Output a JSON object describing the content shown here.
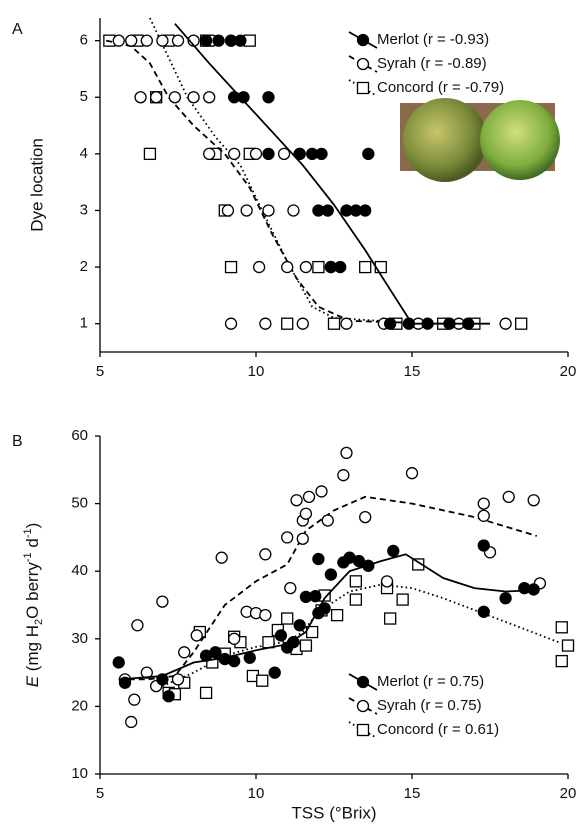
{
  "chart_data": [
    {
      "type": "scatter",
      "panel": "A",
      "y_label": "Dye location",
      "xlim": [
        5,
        20
      ],
      "xticks": [
        5,
        10,
        15,
        20
      ],
      "ylim": [
        0.5,
        6.4
      ],
      "yticks": [
        1,
        2,
        3,
        4,
        5,
        6
      ],
      "legend": "upper right",
      "series": [
        {
          "name": "Concord (r = -0.79)",
          "marker": "square",
          "color": "#000000",
          "line_style": "dotted",
          "x": [
            5.3,
            6.2,
            7.2,
            8.4,
            9.8,
            6.8,
            6.6,
            8.7,
            9.8,
            9.0,
            9.2,
            12.0,
            13.5,
            14.0,
            11.0,
            12.5,
            14.5,
            16.0,
            17.0,
            18.5
          ],
          "values": [
            6,
            6,
            6,
            6,
            6,
            5,
            4,
            4,
            4,
            3,
            2,
            2,
            2,
            2,
            1,
            1,
            1,
            1,
            1,
            1
          ],
          "fit_x": [
            6.6,
            7.2,
            7.8,
            8.7,
            9.5,
            10.2,
            11.0,
            11.8,
            12.5,
            14.0
          ],
          "fit_values": [
            6.4,
            5.7,
            5.0,
            4.3,
            3.8,
            3.0,
            2.1,
            1.3,
            1.1,
            1.05
          ]
        },
        {
          "name": "Syrah (r = -0.89)",
          "marker": "open-circle",
          "color": "#000000",
          "line_style": "dashed",
          "x": [
            5.6,
            6.0,
            6.5,
            7.0,
            7.5,
            8.0,
            8.6,
            9.2,
            6.3,
            6.8,
            7.4,
            8.0,
            8.5,
            8.5,
            9.3,
            10.0,
            10.9,
            11.4,
            9.1,
            9.7,
            10.4,
            11.2,
            10.1,
            11.0,
            11.6,
            12.4,
            9.2,
            10.3,
            11.5,
            12.9,
            14.1,
            15.2,
            16.5,
            18.0
          ],
          "values": [
            6,
            6,
            6,
            6,
            6,
            6,
            6,
            6,
            5,
            5,
            5,
            5,
            5,
            4,
            4,
            4,
            4,
            4,
            3,
            3,
            3,
            3,
            2,
            2,
            2,
            2,
            1,
            1,
            1,
            1,
            1,
            1,
            1,
            1
          ],
          "fit_x": [
            5.2,
            6.0,
            6.6,
            7.2,
            8.0,
            9.0,
            9.8,
            10.5,
            11.3,
            12.0,
            13.0,
            16.0
          ],
          "fit_values": [
            6.0,
            5.9,
            5.6,
            5.0,
            4.5,
            4.0,
            3.4,
            2.6,
            1.8,
            1.3,
            1.05,
            1.0
          ]
        },
        {
          "name": "Merlot (r = -0.93)",
          "marker": "filled-circle",
          "color": "#000000",
          "line_style": "solid",
          "x": [
            8.4,
            8.8,
            9.2,
            9.5,
            9.3,
            9.6,
            10.4,
            10.4,
            11.4,
            11.8,
            12.1,
            13.6,
            12.0,
            12.3,
            12.9,
            13.2,
            13.5,
            12.4,
            12.7,
            14.3,
            14.9,
            15.5,
            16.2,
            16.8
          ],
          "values": [
            6,
            6,
            6,
            6,
            5,
            5,
            5,
            4,
            4,
            4,
            4,
            4,
            3,
            3,
            3,
            3,
            3,
            2,
            2,
            1,
            1,
            1,
            1,
            1
          ],
          "fit_x": [
            7.4,
            8.5,
            9.5,
            10.5,
            11.5,
            12.5,
            13.5,
            14.3,
            15.0,
            17.5
          ],
          "fit_values": [
            6.3,
            5.6,
            5.0,
            4.4,
            3.8,
            3.1,
            2.3,
            1.6,
            1.0,
            1.0
          ]
        }
      ]
    },
    {
      "type": "scatter",
      "panel": "B",
      "x_label": "TSS (°Brix)",
      "y_label_parts": [
        {
          "text": "E",
          "format": "italic"
        },
        {
          "text": " (mg H",
          "format": "normal"
        },
        {
          "text": "2",
          "format": "sub"
        },
        {
          "text": "O berry",
          "format": "normal"
        },
        {
          "text": "-1",
          "format": "sup"
        },
        {
          "text": " d",
          "format": "normal"
        },
        {
          "text": "-1",
          "format": "sup"
        },
        {
          "text": ")",
          "format": "normal"
        }
      ],
      "xlim": [
        5,
        20
      ],
      "xticks": [
        5,
        10,
        15,
        20
      ],
      "ylim": [
        10,
        60
      ],
      "yticks": [
        10,
        20,
        30,
        40,
        50,
        60
      ],
      "legend": "lower right",
      "series": [
        {
          "name": "Concord (r = 0.61)",
          "marker": "square",
          "color": "#000000",
          "line_style": "dotted",
          "x": [
            7.2,
            7.4,
            7.7,
            8.2,
            8.4,
            8.6,
            9.0,
            9.3,
            9.5,
            9.9,
            10.2,
            10.4,
            10.7,
            11.0,
            11.3,
            11.6,
            11.8,
            12.1,
            12.2,
            12.6,
            13.2,
            13.2,
            14.2,
            14.3,
            14.7,
            15.2,
            19.8,
            19.8,
            20.0
          ],
          "values": [
            22,
            21.8,
            23.5,
            31,
            22,
            26.5,
            27.8,
            30.3,
            29.5,
            24.5,
            23.8,
            29.5,
            31.3,
            33,
            28.5,
            29,
            31,
            34.2,
            36.4,
            33.5,
            35.8,
            38.5,
            37.5,
            33,
            35.8,
            41,
            31.7,
            26.7,
            29
          ],
          "fit_x": [
            7.0,
            8.0,
            9.0,
            10.0,
            11.0,
            11.5,
            12.0,
            13.0,
            14.0,
            15.0,
            16.0,
            18.0,
            19.7
          ],
          "fit_values": [
            23,
            25,
            27.5,
            28.8,
            29.6,
            31,
            34,
            37,
            38,
            37.5,
            36,
            32.5,
            29.5
          ]
        },
        {
          "name": "Syrah (r = 0.75)",
          "marker": "open-circle",
          "color": "#000000",
          "line_style": "dashed",
          "x": [
            5.8,
            6.1,
            6.0,
            6.2,
            6.5,
            6.8,
            7.0,
            7.5,
            7.7,
            8.1,
            8.9,
            9.3,
            9.7,
            10.0,
            10.3,
            10.3,
            11.0,
            11.1,
            11.3,
            11.5,
            11.5,
            11.6,
            11.7,
            12.1,
            12.3,
            12.8,
            12.9,
            13.5,
            14.2,
            15.0,
            17.3,
            17.3,
            17.5,
            18.1,
            18.9,
            19.1
          ],
          "values": [
            24,
            21,
            17.7,
            32,
            25,
            23,
            35.5,
            24,
            28,
            30.5,
            42,
            30,
            34,
            33.8,
            42.5,
            33.5,
            45,
            37.5,
            50.5,
            47.5,
            44.8,
            48.5,
            51,
            51.8,
            47.5,
            54.2,
            57.5,
            48,
            38.5,
            54.5,
            50,
            48.2,
            42.8,
            51,
            50.5,
            38.2
          ],
          "fit_x": [
            5.6,
            6.5,
            7.4,
            8.0,
            9.0,
            10.0,
            11.0,
            11.6,
            12.5,
            13.5,
            15.0,
            17.0,
            19.0
          ],
          "fit_values": [
            24,
            24,
            24.5,
            28,
            35,
            38.5,
            41,
            46,
            49,
            51,
            50,
            48,
            45.2
          ]
        },
        {
          "name": "Merlot (r = 0.75)",
          "marker": "filled-circle",
          "color": "#000000",
          "line_style": "solid",
          "x": [
            5.6,
            5.8,
            7.2,
            7.0,
            8.4,
            8.7,
            9.0,
            9.3,
            9.8,
            10.6,
            10.8,
            11.0,
            11.2,
            11.4,
            11.6,
            11.9,
            12.0,
            12.2,
            12.0,
            12.4,
            12.8,
            13.0,
            13.3,
            13.6,
            14.4,
            17.3,
            17.3,
            18.0,
            18.6,
            18.9
          ],
          "values": [
            26.5,
            23.5,
            21.5,
            24,
            27.5,
            28,
            27,
            26.7,
            27.2,
            25,
            30.5,
            28.7,
            29.5,
            32,
            36.2,
            36.3,
            33.8,
            34.5,
            41.8,
            39.5,
            41.3,
            42,
            41.5,
            40.8,
            43,
            43.8,
            34,
            36,
            37.5,
            37.3
          ],
          "fit_x": [
            5.6,
            7.0,
            8.0,
            9.0,
            10.0,
            11.0,
            11.6,
            12.2,
            13.0,
            14.0,
            14.8,
            16.0,
            17.0,
            18.0,
            19.0
          ],
          "fit_values": [
            24,
            24.5,
            26.5,
            27.2,
            28.3,
            29.2,
            31,
            36,
            40,
            41.5,
            42.5,
            39,
            37.5,
            37,
            37.2
          ]
        }
      ]
    }
  ]
}
